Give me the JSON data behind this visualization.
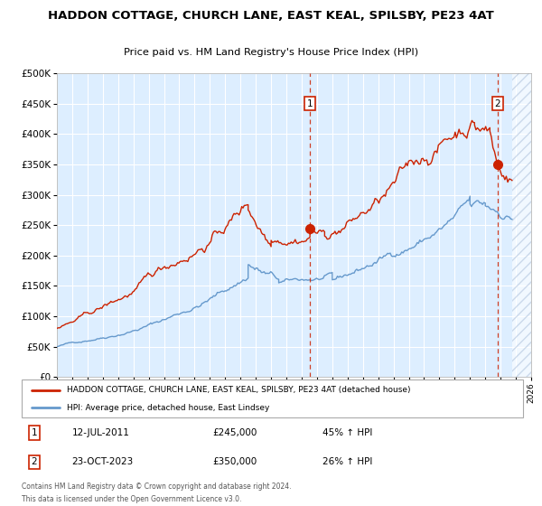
{
  "title": "HADDON COTTAGE, CHURCH LANE, EAST KEAL, SPILSBY, PE23 4AT",
  "subtitle": "Price paid vs. HM Land Registry's House Price Index (HPI)",
  "legend_line1": "HADDON COTTAGE, CHURCH LANE, EAST KEAL, SPILSBY, PE23 4AT (detached house)",
  "legend_line2": "HPI: Average price, detached house, East Lindsey",
  "annotation1_label": "1",
  "annotation1_date": "12-JUL-2011",
  "annotation1_price": "£245,000",
  "annotation1_pct": "45% ↑ HPI",
  "annotation2_label": "2",
  "annotation2_date": "23-OCT-2023",
  "annotation2_price": "£350,000",
  "annotation2_pct": "26% ↑ HPI",
  "footnote_line1": "Contains HM Land Registry data © Crown copyright and database right 2024.",
  "footnote_line2": "This data is licensed under the Open Government Licence v3.0.",
  "red_color": "#cc2200",
  "blue_color": "#6699cc",
  "bg_color": "#ddeeff",
  "hatch_color": "#b0c4de",
  "grid_color": "#ffffff",
  "marker1_x": 2011.54,
  "marker1_y": 245000,
  "marker2_x": 2023.81,
  "marker2_y": 350000,
  "ylim": [
    0,
    500000
  ],
  "xlim_start": 1995.0,
  "xlim_end": 2026.0,
  "hatch_start": 2024.75
}
